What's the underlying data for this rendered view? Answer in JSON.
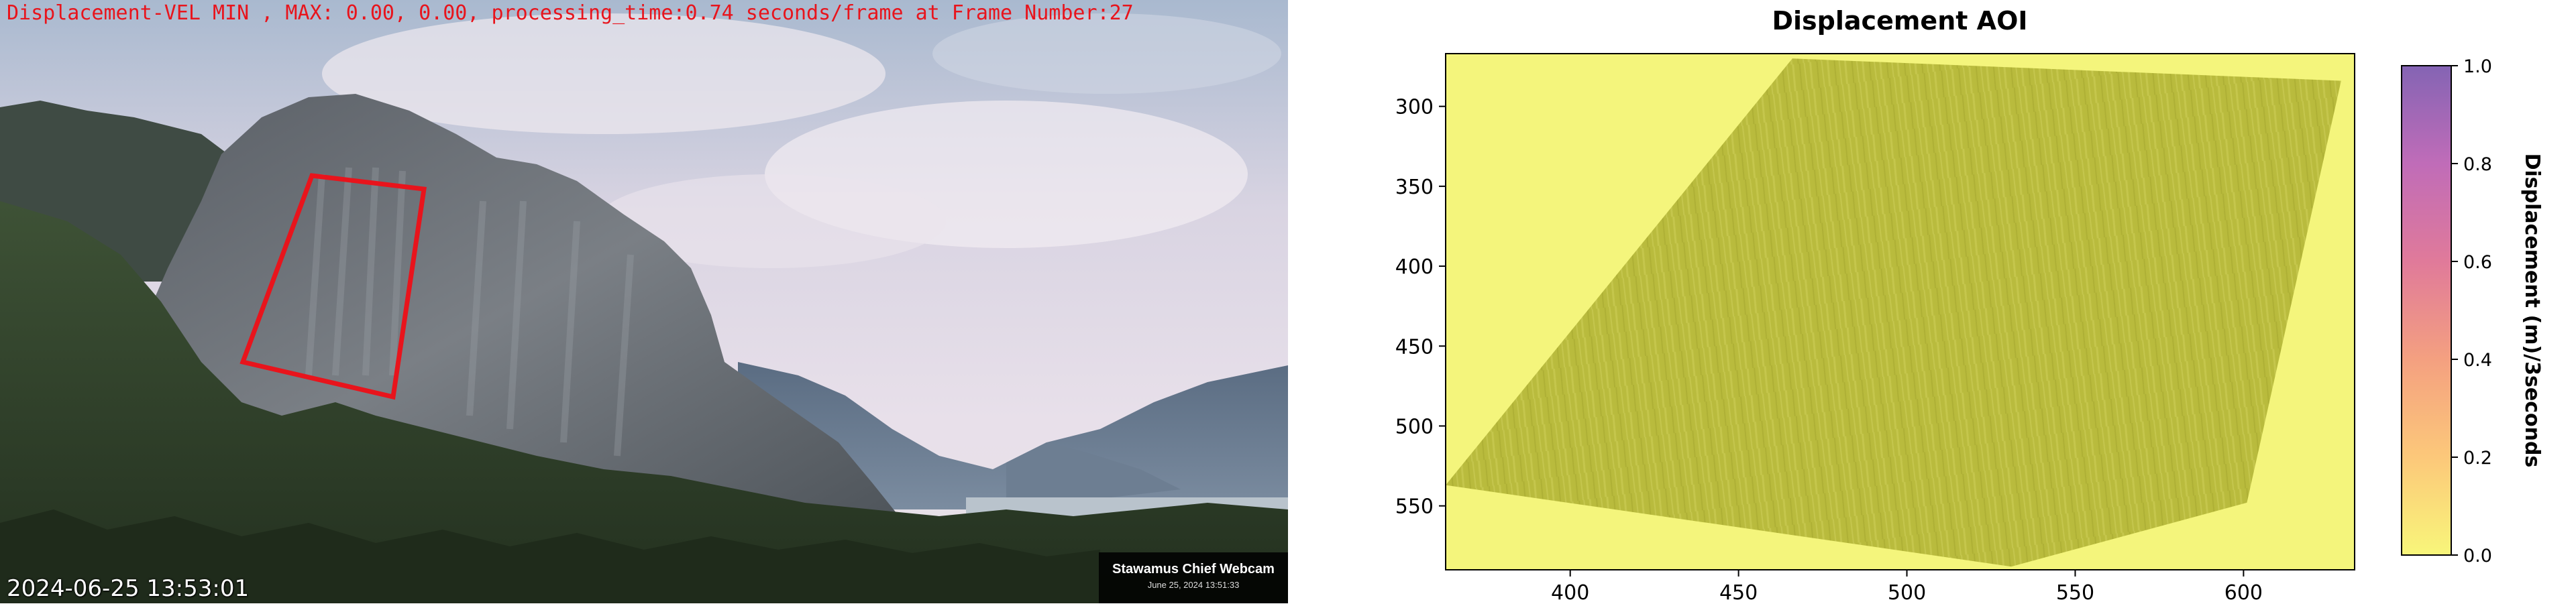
{
  "webcam": {
    "overlay_text": "Displacement-VEL MIN , MAX: 0.00, 0.00, processing_time:0.74 seconds/frame at Frame Number:27",
    "timestamp": "2024-06-25 13:53:01",
    "watermark_title": "Stawamus Chief Webcam",
    "watermark_date": "June 25, 2024 13:51:33",
    "aoi_color": "#e8141c"
  },
  "chart_data": {
    "type": "heatmap",
    "title": "Displacement AOI",
    "xlabel": "",
    "ylabel": "",
    "x_ticks": [
      400,
      450,
      500,
      550,
      600
    ],
    "y_ticks": [
      300,
      350,
      400,
      450,
      500,
      550
    ],
    "xlim": [
      363,
      633
    ],
    "ylim": [
      590,
      267
    ],
    "colorbar": {
      "label": "Displacement (m)/3seconds",
      "ticks": [
        "0.0",
        "0.2",
        "0.4",
        "0.6",
        "0.8",
        "1.0"
      ],
      "range": [
        0.0,
        1.0
      ],
      "colormap": [
        "#f8f67a",
        "#fcc87a",
        "#f4a080",
        "#e07a9a",
        "#c06cb8",
        "#8464b4"
      ]
    },
    "background_color": "#f4f57c",
    "aoi_color": "#b6b83a",
    "aoi_polygon": [
      [
        466,
        270
      ],
      [
        629,
        284
      ],
      [
        601,
        548
      ],
      [
        531,
        588
      ],
      [
        363,
        537
      ]
    ]
  }
}
